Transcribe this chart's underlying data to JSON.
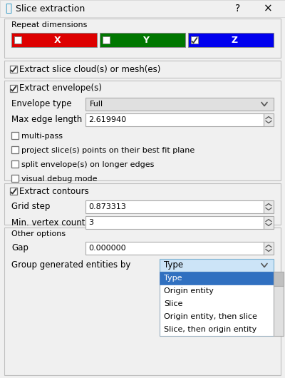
{
  "title": "Slice extraction",
  "bg_color": "#f0f0f0",
  "sections": {
    "repeat_dims": "Repeat dimensions",
    "extract_slice": "Extract slice cloud(s) or mesh(es)",
    "extract_envelope": "Extract envelope(s)",
    "extract_contours": "Extract contours",
    "other_options": "Other options"
  },
  "dim_buttons": [
    {
      "label": "X",
      "color": "#dd0000",
      "checked": false
    },
    {
      "label": "Y",
      "color": "#007700",
      "checked": false
    },
    {
      "label": "Z",
      "color": "#0000ee",
      "checked": true
    }
  ],
  "envelope_type_label": "Envelope type",
  "envelope_type_value": "Full",
  "max_edge_label": "Max edge length",
  "max_edge_value": "2.619940",
  "checkboxes_unchecked": [
    "multi-pass",
    "project slice(s) points on their best fit plane",
    "split envelope(s) on longer edges",
    "visual debug mode"
  ],
  "grid_step_label": "Grid step",
  "grid_step_value": "0.873313",
  "min_vertex_label": "Min. vertex count",
  "min_vertex_value": "3",
  "gap_label": "Gap",
  "gap_value": "0.000000",
  "group_label": "Group generated entities by",
  "group_selected": "Type",
  "dropdown_items": [
    "Type",
    "Origin entity",
    "Slice",
    "Origin entity, then slice",
    "Slice, then origin entity"
  ],
  "cc_icon_color": "#1e8fc0",
  "title_bg": "#f0f0f0",
  "groupbox_bg": "#f0f0f0",
  "groupbox_border": "#c0c0c0",
  "spinbox_arrow_bg": "#e8e8e8",
  "dropdown_header_bg": "#cce4f7",
  "dropdown_selected_bg": "#3070c0",
  "dropdown_list_bg": "#ffffff",
  "scrollbar_bg": "#e0e0e0",
  "scrollbar_thumb": "#c0c0c0"
}
